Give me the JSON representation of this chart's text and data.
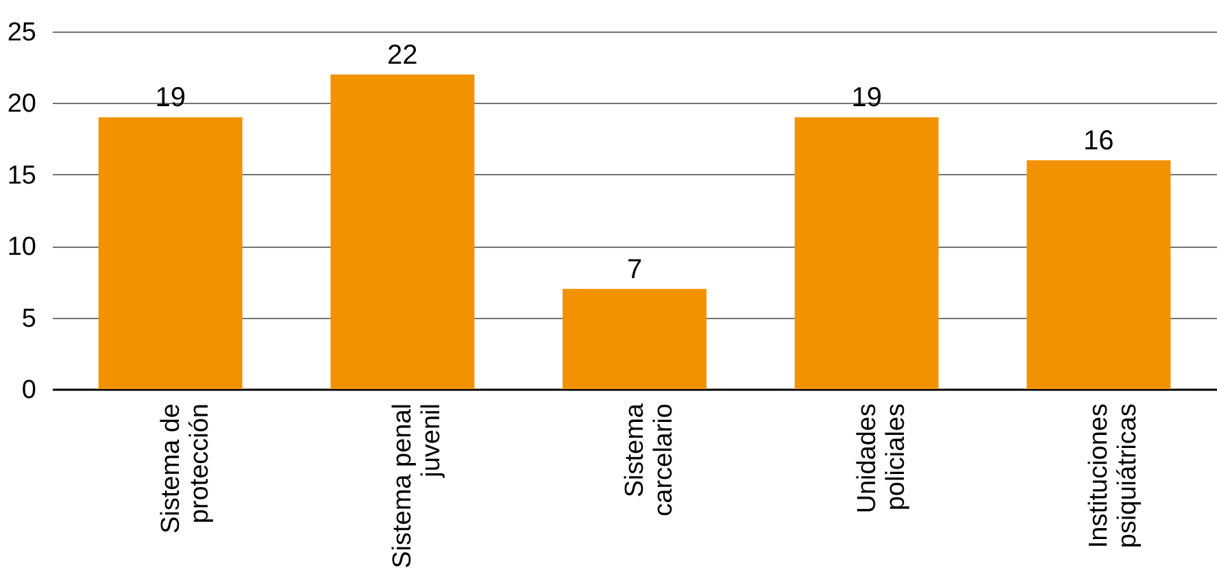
{
  "chart_data": {
    "type": "bar",
    "categories": [
      "Sistema de\nprotección",
      "Sistema penal\njuvenil",
      "Sistema\ncarcelario",
      "Unidades\npoliciales",
      "Instituciones\npsiquiátricas"
    ],
    "values": [
      19,
      22,
      7,
      19,
      16
    ],
    "color": "#f39200",
    "ylim": [
      0,
      25
    ],
    "yticks": [
      0,
      5,
      10,
      15,
      20,
      25
    ],
    "grid": "y",
    "data_labels": true
  }
}
